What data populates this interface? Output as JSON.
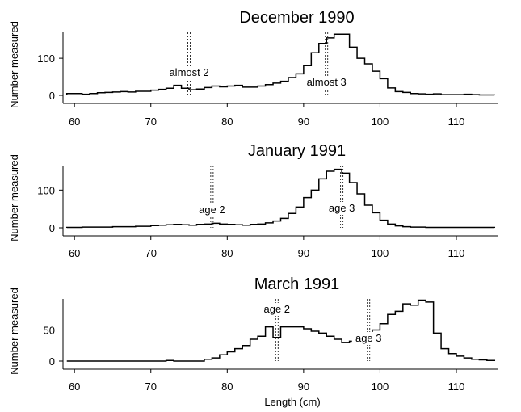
{
  "xlabel": "Length  (cm)",
  "chart_data": [
    {
      "type": "histogram",
      "title": "December 1990",
      "ylabel": "Number measured",
      "xlim": [
        58.5,
        115.5
      ],
      "ylim": [
        0,
        170
      ],
      "xticks": [
        60,
        70,
        80,
        90,
        100,
        110
      ],
      "yticks": [
        0,
        100
      ],
      "bin_start": 59,
      "bin_width": 1,
      "values": [
        5,
        5,
        3,
        5,
        7,
        8,
        9,
        10,
        9,
        11,
        11,
        14,
        16,
        19,
        27,
        19,
        15,
        17,
        21,
        25,
        23,
        25,
        27,
        22,
        22,
        25,
        29,
        33,
        38,
        48,
        58,
        80,
        115,
        140,
        155,
        165,
        165,
        130,
        100,
        85,
        65,
        45,
        20,
        10,
        8,
        5,
        4,
        3,
        4,
        2,
        2,
        2,
        3,
        2,
        1,
        1
      ],
      "markers": [
        {
          "label": "almost 2",
          "x": 75
        },
        {
          "label": "almost 3",
          "x": 93
        }
      ]
    },
    {
      "type": "histogram",
      "title": "January 1991",
      "ylabel": "Number measured",
      "xlim": [
        58.5,
        115.5
      ],
      "ylim": [
        0,
        165
      ],
      "xticks": [
        60,
        70,
        80,
        90,
        100,
        110
      ],
      "yticks": [
        0,
        100
      ],
      "bin_start": 59,
      "bin_width": 1,
      "values": [
        1,
        1,
        2,
        2,
        2,
        2,
        3,
        3,
        3,
        4,
        4,
        6,
        7,
        8,
        9,
        8,
        7,
        9,
        10,
        12,
        10,
        9,
        8,
        7,
        9,
        10,
        13,
        18,
        25,
        38,
        55,
        80,
        100,
        130,
        150,
        155,
        145,
        120,
        90,
        60,
        40,
        20,
        10,
        5,
        3,
        2,
        2,
        1,
        1,
        1,
        1,
        1,
        1,
        1,
        1,
        1
      ],
      "markers": [
        {
          "label": "age 2",
          "x": 78
        },
        {
          "label": "age 3",
          "x": 95
        }
      ]
    },
    {
      "type": "histogram",
      "title": "March 1991",
      "ylabel": "Number measured",
      "xlim": [
        58.5,
        115.5
      ],
      "ylim": [
        0,
        100
      ],
      "xticks": [
        60,
        70,
        80,
        90,
        100,
        110
      ],
      "yticks": [
        0,
        50
      ],
      "bin_start": 59,
      "bin_width": 1,
      "values": [
        0,
        0,
        0,
        0,
        0,
        0,
        0,
        0,
        0,
        0,
        0,
        0,
        0,
        1,
        0,
        0,
        0,
        0,
        3,
        5,
        10,
        15,
        20,
        25,
        35,
        40,
        55,
        38,
        55,
        55,
        55,
        52,
        48,
        45,
        40,
        35,
        30,
        32,
        38,
        40,
        50,
        60,
        75,
        80,
        92,
        90,
        98,
        95,
        45,
        20,
        12,
        8,
        5,
        3,
        2,
        1
      ],
      "markers": [
        {
          "label": "age 2",
          "x": 86.5
        },
        {
          "label": "age 3",
          "x": 98.5
        }
      ]
    }
  ]
}
